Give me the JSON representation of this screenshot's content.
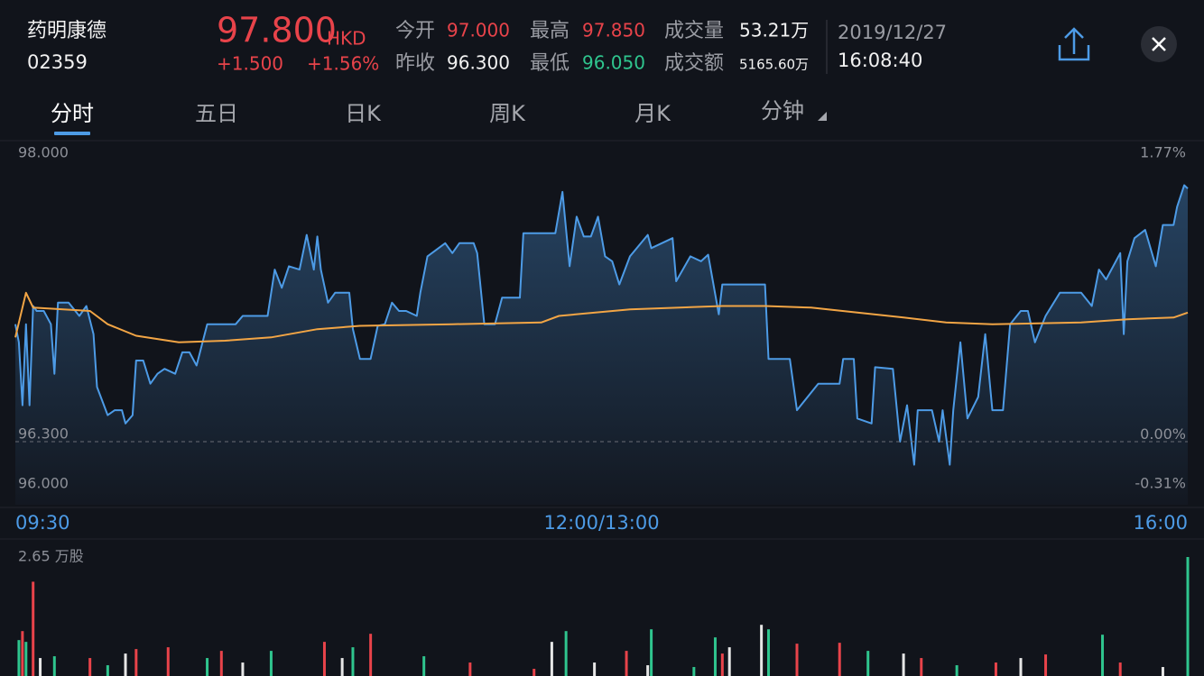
{
  "header": {
    "name": "药明康德",
    "code": "02359",
    "price": "97.800",
    "currency": "HKD",
    "change": "+1.500",
    "change_pct": "+1.56%",
    "open_label": "今开",
    "open": "97.000",
    "prev_close_label": "昨收",
    "prev_close": "96.300",
    "high_label": "最高",
    "high": "97.850",
    "low_label": "最低",
    "low": "96.050",
    "volume_label": "成交量",
    "volume": "53.21万",
    "turnover_label": "成交额",
    "turnover": "5165.60万",
    "date": "2019/12/27",
    "time": "16:08:40"
  },
  "tabs": [
    "分时",
    "五日",
    "日K",
    "周K",
    "月K",
    "分钟"
  ],
  "chart_data": [
    {
      "type": "line",
      "xlim": [
        0,
        330
      ],
      "xticks": [
        {
          "value": 0,
          "label": "09:30"
        },
        {
          "value": 165,
          "label": "12:00/13:00"
        },
        {
          "value": 330,
          "label": "16:00"
        }
      ],
      "ylim": [
        96,
        98
      ],
      "yticks": [
        {
          "value": 96,
          "label": "96.000"
        },
        {
          "value": 96.3,
          "label": "96.300"
        },
        {
          "value": 98,
          "label": "98.000"
        }
      ],
      "y2lim": [
        -0.31,
        1.77
      ],
      "y2ticks": [
        {
          "value": -0.31,
          "label": "-0.31%"
        },
        {
          "value": 0,
          "label": "0.00%"
        },
        {
          "value": 1.77,
          "label": "1.77%"
        }
      ],
      "baseline": 96.3,
      "series": [
        {
          "color": "#4d9be6",
          "area": true,
          "x": [
            0,
            1,
            2,
            3,
            4,
            5,
            6,
            8,
            10,
            11,
            12,
            15,
            18,
            20,
            22,
            23,
            26,
            28,
            30,
            31,
            33,
            34,
            36,
            38,
            40,
            42,
            45,
            47,
            49,
            51,
            54,
            56,
            62,
            64,
            71,
            73,
            75,
            77,
            80,
            82,
            84,
            85,
            86,
            88,
            90,
            94,
            95,
            97,
            100,
            102,
            104,
            106,
            108,
            110,
            113,
            114,
            116,
            121,
            123,
            125,
            129,
            130,
            132,
            135,
            137,
            142,
            143,
            152,
            154,
            156,
            158,
            160,
            162,
            164,
            166,
            168,
            170,
            173,
            178,
            179,
            185,
            186,
            190,
            193,
            195,
            198,
            199,
            211,
            212,
            218,
            220,
            226,
            232,
            233,
            236,
            237,
            241,
            242,
            247,
            249,
            251,
            253,
            254,
            258,
            260,
            261,
            263,
            264,
            266,
            268,
            271,
            273,
            275,
            278,
            280,
            283,
            285,
            287,
            290,
            294,
            300,
            303,
            305,
            307,
            311,
            312,
            313,
            315,
            318,
            321,
            323,
            326,
            327,
            329,
            330
          ],
          "values": [
            97.01,
            96.9,
            96.52,
            97.01,
            96.52,
            97.12,
            97.09,
            97.09,
            97.01,
            96.71,
            97.14,
            97.14,
            97.06,
            97.12,
            96.95,
            96.63,
            96.46,
            96.49,
            96.49,
            96.41,
            96.46,
            96.79,
            96.79,
            96.65,
            96.71,
            96.74,
            96.71,
            96.84,
            96.84,
            96.76,
            97.01,
            97.01,
            97.01,
            97.06,
            97.06,
            97.34,
            97.23,
            97.36,
            97.34,
            97.55,
            97.34,
            97.54,
            97.34,
            97.14,
            97.2,
            97.2,
            96.98,
            96.8,
            96.8,
            97.0,
            97.01,
            97.14,
            97.09,
            97.09,
            97.06,
            97.2,
            97.42,
            97.5,
            97.44,
            97.5,
            97.5,
            97.44,
            97.01,
            97.01,
            97.17,
            97.17,
            97.56,
            97.56,
            97.81,
            97.36,
            97.66,
            97.54,
            97.54,
            97.66,
            97.42,
            97.39,
            97.25,
            97.42,
            97.55,
            97.47,
            97.53,
            97.27,
            97.42,
            97.39,
            97.43,
            97.07,
            97.25,
            97.25,
            96.8,
            96.8,
            96.49,
            96.65,
            96.65,
            96.8,
            96.8,
            96.44,
            96.41,
            96.75,
            96.74,
            96.3,
            96.52,
            96.16,
            96.49,
            96.49,
            96.3,
            96.49,
            96.16,
            96.49,
            96.9,
            96.44,
            96.57,
            96.95,
            96.49,
            96.49,
            97.01,
            97.09,
            97.09,
            96.9,
            97.06,
            97.2,
            97.2,
            97.12,
            97.34,
            97.28,
            97.44,
            96.95,
            97.39,
            97.53,
            97.58,
            97.36,
            97.61,
            97.61,
            97.72,
            97.85,
            97.83
          ]
        },
        {
          "color": "#f2a545",
          "x": [
            0,
            3,
            5,
            21,
            26,
            34,
            46,
            59,
            72,
            85,
            97,
            123,
            148,
            153,
            173,
            199,
            211,
            224,
            237,
            250,
            262,
            275,
            300,
            313,
            326,
            330
          ],
          "values": [
            96.93,
            97.2,
            97.11,
            97.09,
            97.01,
            96.94,
            96.9,
            96.91,
            96.93,
            96.98,
            97.0,
            97.01,
            97.02,
            97.06,
            97.1,
            97.12,
            97.12,
            97.11,
            97.08,
            97.05,
            97.02,
            97.01,
            97.02,
            97.04,
            97.05,
            97.08
          ]
        }
      ]
    },
    {
      "type": "bar",
      "xlim": [
        0,
        330
      ],
      "ylim": [
        0,
        2.65
      ],
      "yticks": [
        {
          "value": 2.65,
          "label": "2.65 万股"
        }
      ],
      "series": [
        {
          "color": "#e8434a",
          "x": [
            2,
            5,
            21,
            34,
            43,
            58,
            87,
            100,
            128,
            146,
            172,
            199,
            220,
            232,
            255,
            276,
            290,
            311
          ],
          "values": [
            1.0,
            2.1,
            0.4,
            0.6,
            0.64,
            0.56,
            0.76,
            0.94,
            0.3,
            0.16,
            0.56,
            0.5,
            0.72,
            0.74,
            0.4,
            0.3,
            0.48,
            0.3
          ]
        },
        {
          "color": "#2fc58e",
          "x": [
            1,
            3,
            11,
            26,
            54,
            72,
            95,
            115,
            155,
            179,
            191,
            197,
            212,
            240,
            265,
            306,
            330
          ],
          "values": [
            0.8,
            0.76,
            0.44,
            0.24,
            0.4,
            0.56,
            0.64,
            0.44,
            1.0,
            1.04,
            0.2,
            0.86,
            1.04,
            0.56,
            0.24,
            0.92,
            2.65
          ]
        },
        {
          "color": "#e6e6e6",
          "x": [
            7,
            31,
            64,
            92,
            151,
            163,
            178,
            201,
            210,
            250,
            283,
            323
          ],
          "values": [
            0.4,
            0.5,
            0.3,
            0.4,
            0.76,
            0.3,
            0.24,
            0.64,
            1.14,
            0.5,
            0.4,
            0.2
          ]
        }
      ]
    }
  ]
}
